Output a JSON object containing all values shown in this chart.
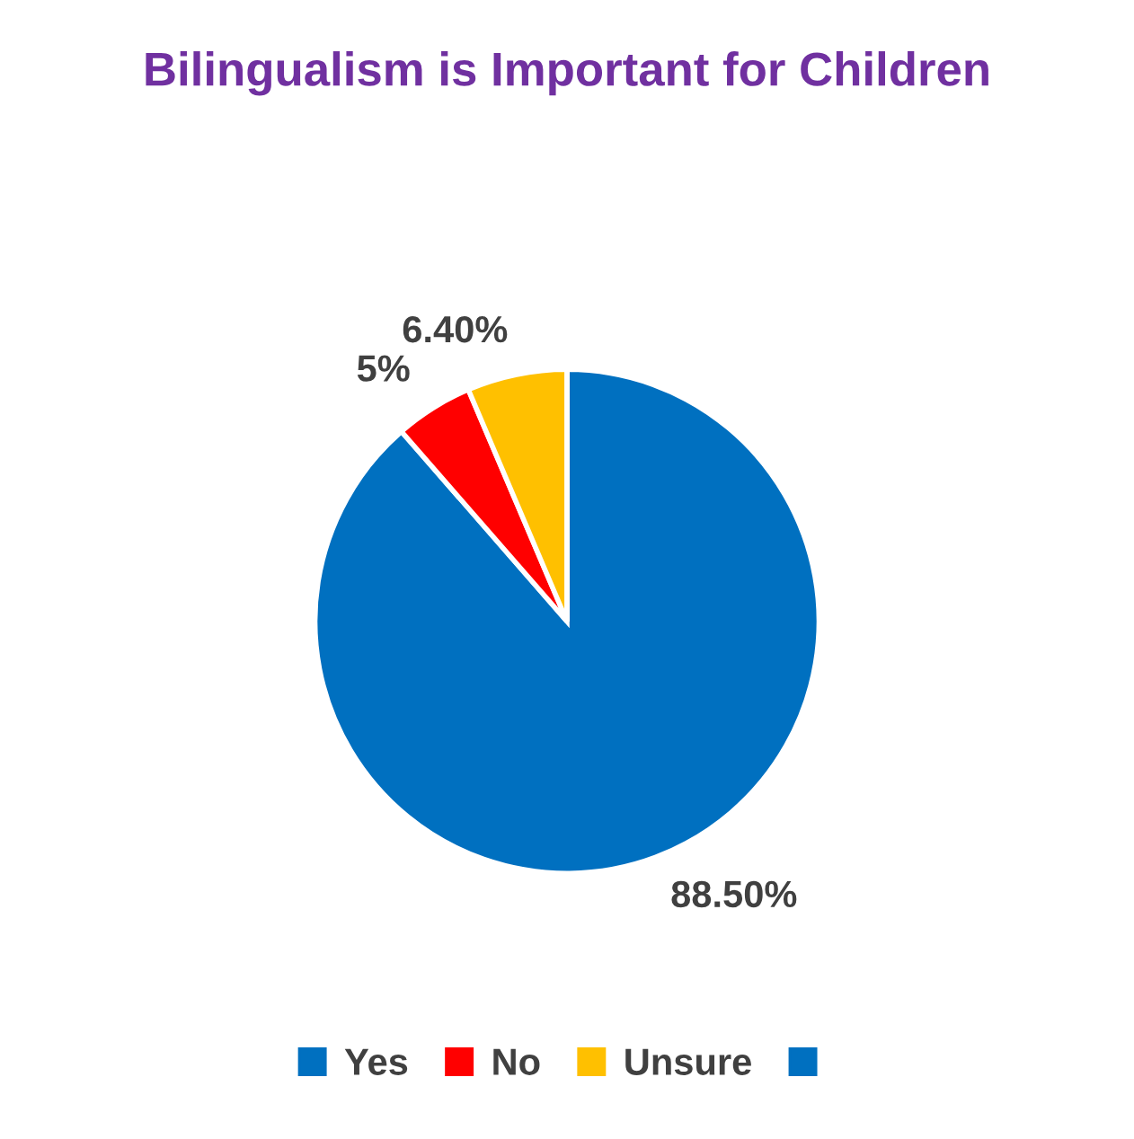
{
  "chart_data": {
    "type": "pie",
    "title": "Bilingualism is Important for Children",
    "categories": [
      "Yes",
      "No",
      "Unsure",
      null
    ],
    "values": [
      88.5,
      5,
      6.4,
      0
    ],
    "colors": [
      "#0070c0",
      "#ff0000",
      "#ffc000",
      "#0070c0"
    ],
    "value_labels": [
      "88.50%",
      "5%",
      "6.40%",
      null
    ],
    "legend": "bottom"
  }
}
